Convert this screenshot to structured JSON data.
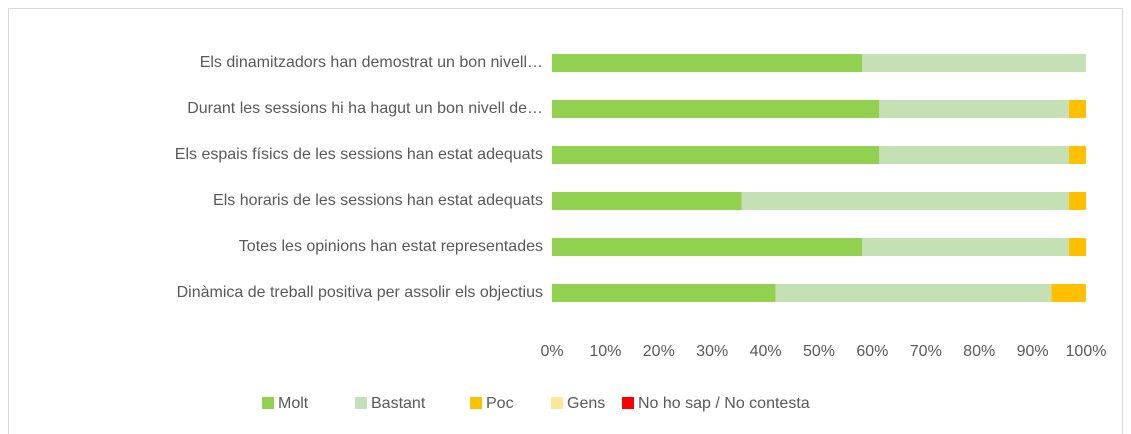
{
  "chart_data": {
    "type": "stacked_bar_horizontal",
    "categories": [
      "Els dinamitzadors han demostrat un bon nivell…",
      "Durant les sessions hi ha hagut un bon nivell de…",
      "Els espais físics de les sessions han estat adequats",
      "Els horaris de les sessions han estat adequats",
      "Totes les opinions han estat representades",
      "Dinàmica de treball positiva per assolir els objectius"
    ],
    "series": [
      {
        "name": "Molt",
        "color": "#92d050",
        "values": [
          58.1,
          61.3,
          61.3,
          35.5,
          58.1,
          41.9
        ]
      },
      {
        "name": "Bastant",
        "color": "#c5e0b4",
        "values": [
          41.9,
          35.5,
          35.5,
          61.3,
          38.7,
          51.6
        ]
      },
      {
        "name": "Poc",
        "color": "#ffc000",
        "values": [
          0,
          3.2,
          3.2,
          3.2,
          3.2,
          6.5
        ]
      },
      {
        "name": "Gens",
        "color": "#ffe699",
        "values": [
          0,
          0,
          0,
          0,
          0,
          0
        ]
      },
      {
        "name": "No ho sap / No contesta",
        "color": "#ff0000",
        "values": [
          0,
          0,
          0,
          0,
          0,
          0
        ]
      }
    ],
    "xlim": [
      0,
      100
    ],
    "xticks": [
      {
        "value": 0,
        "label": "0%"
      },
      {
        "value": 10,
        "label": "10%"
      },
      {
        "value": 20,
        "label": "20%"
      },
      {
        "value": 30,
        "label": "30%"
      },
      {
        "value": 40,
        "label": "40%"
      },
      {
        "value": 50,
        "label": "50%"
      },
      {
        "value": 60,
        "label": "60%"
      },
      {
        "value": 70,
        "label": "70%"
      },
      {
        "value": 80,
        "label": "80%"
      },
      {
        "value": 90,
        "label": "90%"
      },
      {
        "value": 100,
        "label": "100%"
      }
    ],
    "grid": false,
    "legend": "bottom"
  }
}
